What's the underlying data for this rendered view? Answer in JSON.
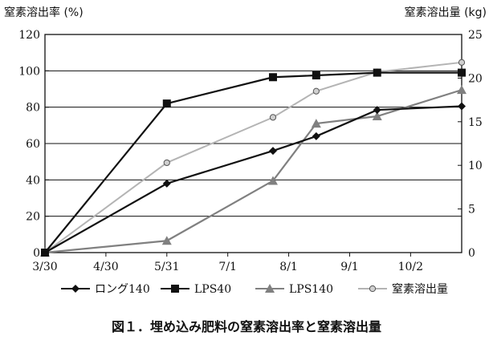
{
  "caption": "図１．埋め込み肥料の窒素溶出率と窒素溶出量",
  "chart_data": {
    "type": "line",
    "ylabel": "窒素溶出率 (%)",
    "y2label": "窒素溶出量 (kg)",
    "categories": [
      "3/30",
      "4/30",
      "5/31",
      "7/1",
      "8/1",
      "9/1",
      "10/2"
    ],
    "x_ticks": [
      "3/30",
      "4/30",
      "5/31",
      "7/1",
      "8/1",
      "9/1",
      "10/2"
    ],
    "x_range": [
      "3/30",
      "10/28"
    ],
    "ylim": [
      0,
      120
    ],
    "y_ticks": [
      0,
      20,
      40,
      60,
      80,
      100,
      120
    ],
    "y2lim": [
      0,
      25
    ],
    "y2_ticks": [
      0,
      5,
      10,
      15,
      20,
      25
    ],
    "grid": "horizontal",
    "legend_position": "bottom",
    "series": [
      {
        "name": "ロング140",
        "axis": "left",
        "color": "#111111",
        "marker": "diamond",
        "points": [
          [
            "3/30",
            0
          ],
          [
            "5/31",
            38
          ],
          [
            "7/24",
            56
          ],
          [
            "8/15",
            64
          ],
          [
            "9/15",
            78.5
          ],
          [
            "10/28",
            80.5
          ]
        ]
      },
      {
        "name": "LPS40",
        "axis": "left",
        "color": "#111111",
        "marker": "square",
        "points": [
          [
            "3/30",
            0
          ],
          [
            "5/31",
            82
          ],
          [
            "7/24",
            96.5
          ],
          [
            "8/15",
            97.5
          ],
          [
            "9/15",
            99
          ],
          [
            "10/28",
            99
          ]
        ]
      },
      {
        "name": "LPS140",
        "axis": "left",
        "color": "#808080",
        "marker": "triangle",
        "points": [
          [
            "3/30",
            0
          ],
          [
            "5/31",
            6.5
          ],
          [
            "7/24",
            39.5
          ],
          [
            "8/15",
            71
          ],
          [
            "9/15",
            75
          ],
          [
            "10/28",
            89.5
          ]
        ]
      },
      {
        "name": "窒素溶出量",
        "axis": "right",
        "color": "#b4b4b4",
        "marker": "circle",
        "points": [
          [
            "3/30",
            0
          ],
          [
            "5/31",
            10.3
          ],
          [
            "7/24",
            15.5
          ],
          [
            "8/15",
            18.5
          ],
          [
            "9/15",
            20.7
          ],
          [
            "10/28",
            21.8
          ]
        ]
      }
    ]
  }
}
